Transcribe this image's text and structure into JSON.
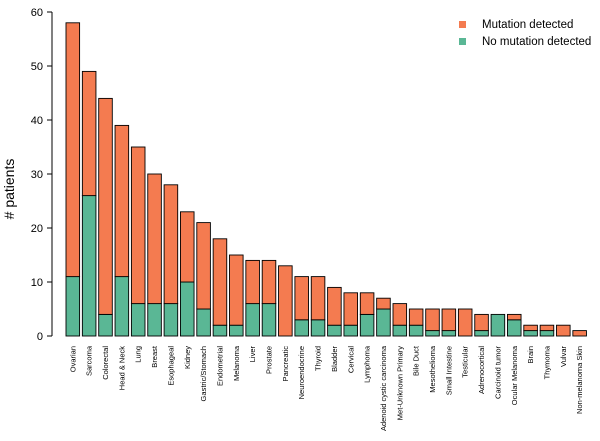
{
  "chart_data": {
    "type": "bar",
    "stacked": true,
    "ylabel": "# patients",
    "xlabel": "",
    "ylim": [
      0,
      60
    ],
    "yticks": [
      0,
      10,
      20,
      30,
      40,
      50,
      60
    ],
    "grid": false,
    "legend_position": "top-right",
    "categories": [
      "Ovarian",
      "Sarcoma",
      "Colorectal",
      "Head & Neck",
      "Lung",
      "Breast",
      "Esophageal",
      "Kidney",
      "Gastric/Stomach",
      "Endometrial",
      "Melanoma",
      "Liver",
      "Prostate",
      "Pancreatic",
      "Neuroendocrine",
      "Thyroid",
      "Bladder",
      "Cervical",
      "Lymphoma",
      "Adenoid cystic carcinoma",
      "Met-Unknown Primary",
      "Bile Duct",
      "Mesothelioma",
      "Small Intestine",
      "Testicular",
      "Adrenocortical",
      "Carcinoid tumor",
      "Ocular Melanoma",
      "Brain",
      "Thymoma",
      "Vulvar",
      "Non-melanoma Skin"
    ],
    "series": [
      {
        "name": "No mutation detected",
        "color": "#5ab795",
        "values": [
          11,
          26,
          4,
          11,
          6,
          6,
          6,
          10,
          5,
          2,
          2,
          6,
          6,
          0,
          3,
          3,
          2,
          2,
          4,
          5,
          2,
          2,
          1,
          1,
          0,
          1,
          4,
          3,
          1,
          1,
          0,
          0
        ]
      },
      {
        "name": "Mutation detected",
        "color": "#f47b50",
        "values": [
          47,
          23,
          40,
          28,
          29,
          24,
          22,
          13,
          16,
          16,
          13,
          8,
          8,
          13,
          8,
          8,
          7,
          6,
          4,
          2,
          4,
          3,
          4,
          4,
          5,
          3,
          0,
          1,
          1,
          1,
          2,
          1
        ]
      }
    ]
  }
}
